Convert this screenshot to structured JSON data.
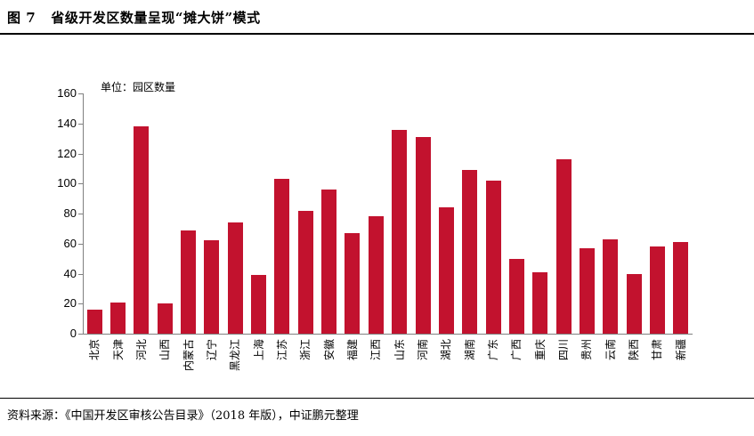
{
  "header": {
    "title": "图 7   省级开发区数量呈现“摊大饼”模式"
  },
  "chart_data": {
    "type": "bar",
    "title": "省级开发区数量呈现“摊大饼”模式",
    "unit_label": "单位：园区数量",
    "categories": [
      "北京",
      "天津",
      "河北",
      "山西",
      "内蒙古",
      "辽宁",
      "黑龙江",
      "上海",
      "江苏",
      "浙江",
      "安徽",
      "福建",
      "江西",
      "山东",
      "河南",
      "湖北",
      "湖南",
      "广东",
      "广西",
      "重庆",
      "四川",
      "贵州",
      "云南",
      "陕西",
      "甘肃",
      "新疆"
    ],
    "values": [
      16,
      21,
      138,
      20,
      69,
      62,
      74,
      39,
      103,
      82,
      96,
      67,
      78,
      136,
      131,
      84,
      109,
      102,
      50,
      41,
      116,
      57,
      63,
      40,
      58,
      61
    ],
    "yticks": [
      0,
      20,
      40,
      60,
      80,
      100,
      120,
      140,
      160
    ],
    "ylim": [
      0,
      160
    ],
    "xlabel": "",
    "ylabel": "",
    "grid": false,
    "legend_position": "none",
    "bar_color": "#c2122e",
    "axis_color": "#808080"
  },
  "footer": {
    "source": "资料来源：《中国开发区审核公告目录》（2018 年版），中证鹏元整理"
  }
}
